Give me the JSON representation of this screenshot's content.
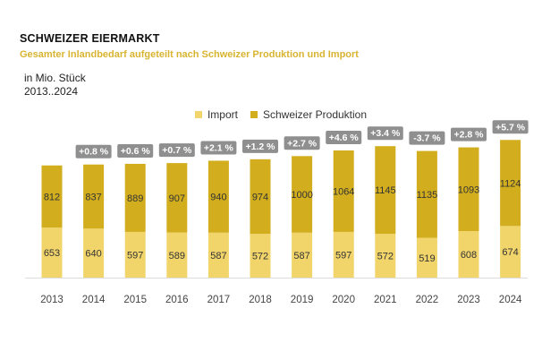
{
  "colors": {
    "import": "#f1d56b",
    "swiss": "#d2ae1e",
    "badge": "#8f8f8f",
    "badge_text": "#ffffff",
    "subtitle": "#d8b431"
  },
  "chart_data": {
    "type": "bar",
    "stacked": true,
    "title": "SCHWEIZER EIERMARKT",
    "subtitle": "Gesamter Inlandbedarf aufgeteilt nach Schweizer Produktion und Import",
    "unit_label": "in Mio. Stück",
    "range_label": "2013..2024",
    "categories": [
      "2013",
      "2014",
      "2015",
      "2016",
      "2017",
      "2018",
      "2019",
      "2020",
      "2021",
      "2022",
      "2023",
      "2024"
    ],
    "series": [
      {
        "name": "Import",
        "values": [
          653,
          640,
          597,
          589,
          587,
          572,
          587,
          597,
          572,
          519,
          608,
          674
        ]
      },
      {
        "name": "Schweizer Produktion",
        "values": [
          812,
          837,
          889,
          907,
          940,
          974,
          1000,
          1064,
          1145,
          1135,
          1093,
          1124
        ]
      }
    ],
    "growth_labels": [
      "",
      "+0.8 %",
      "+0.6 %",
      "+0.7 %",
      "+2.1 %",
      "+1.2 %",
      "+2.7 %",
      "+4.6 %",
      "+3.4 %",
      "-3.7 %",
      "+2.8 %",
      "+5.7 %"
    ],
    "legend": [
      "Import",
      "Schweizer Produktion"
    ],
    "legend_position": "top-center",
    "ylim": [
      0,
      1800
    ],
    "grid": false
  }
}
